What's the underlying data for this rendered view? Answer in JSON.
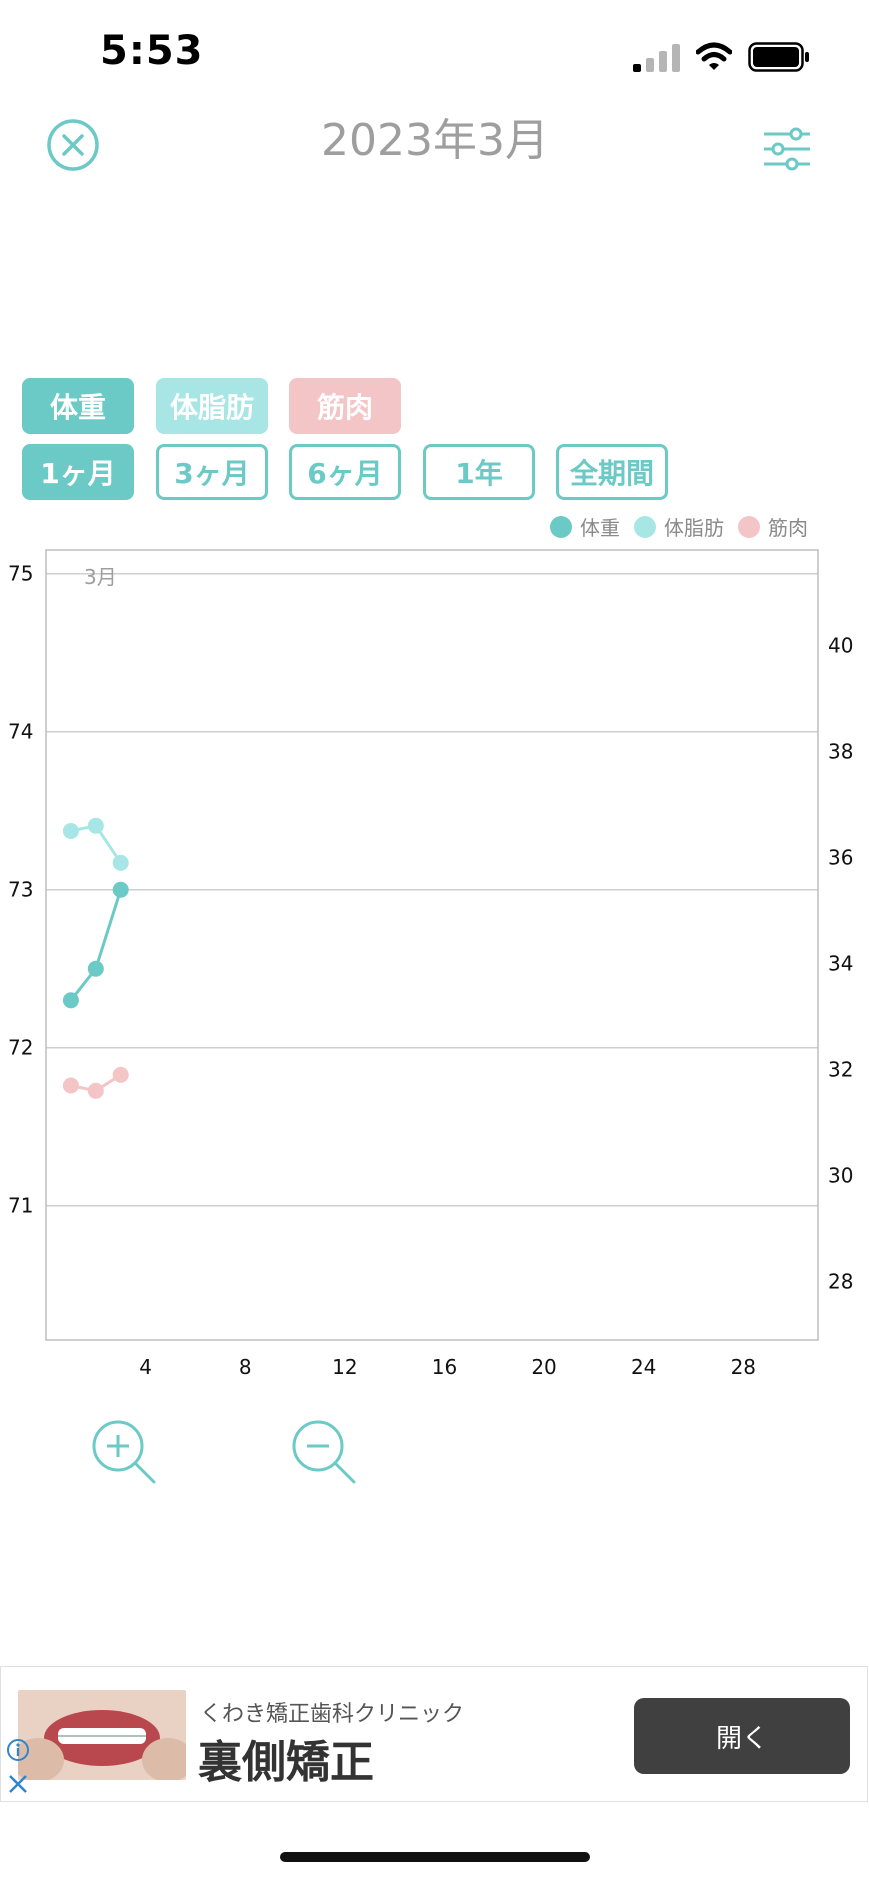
{
  "status_bar": {
    "time": "5:53"
  },
  "header": {
    "title": "2023年3月"
  },
  "metric_tabs": [
    {
      "label": "体重",
      "color": "#6ccac6"
    },
    {
      "label": "体脂肪",
      "color": "#a8e6e6"
    },
    {
      "label": "筋肉",
      "color": "#f3c5c7"
    }
  ],
  "period_tabs": [
    {
      "label": "1ヶ月",
      "active": true
    },
    {
      "label": "3ヶ月",
      "active": false
    },
    {
      "label": "6ヶ月",
      "active": false
    },
    {
      "label": "1年",
      "active": false
    },
    {
      "label": "全期間",
      "active": false
    }
  ],
  "legend": [
    {
      "label": "体重",
      "color": "#6ccac6"
    },
    {
      "label": "体脂肪",
      "color": "#a8e6e6"
    },
    {
      "label": "筋肉",
      "color": "#f3c5c7"
    }
  ],
  "chart_data": {
    "type": "line",
    "month_label": "3月",
    "x_ticks": [
      4,
      8,
      12,
      16,
      20,
      24,
      28
    ],
    "xlim": [
      0,
      31
    ],
    "y_left_ticks": [
      71,
      72,
      73,
      74,
      75
    ],
    "y_left_lim": [
      70.15,
      75.15
    ],
    "y_right_ticks": [
      28,
      30,
      32,
      34,
      36,
      38,
      40
    ],
    "y_right_lim": [
      26.9,
      41.8
    ],
    "grid": true,
    "legend_position": "top-right",
    "series": [
      {
        "name": "体重",
        "axis": "left",
        "color": "#6ccac6",
        "x": [
          1,
          2,
          3
        ],
        "y": [
          72.3,
          72.5,
          73.0
        ]
      },
      {
        "name": "体脂肪",
        "axis": "right",
        "color": "#a8e6e6",
        "x": [
          1,
          2,
          3
        ],
        "y": [
          36.5,
          36.6,
          35.9
        ]
      },
      {
        "name": "筋肉",
        "axis": "right",
        "color": "#f3c5c7",
        "x": [
          1,
          2,
          3
        ],
        "y": [
          31.7,
          31.6,
          31.9
        ]
      }
    ]
  },
  "ad": {
    "subtitle": "くわき矯正歯科クリニック",
    "title": "裏側矯正",
    "button_label": "開く"
  }
}
